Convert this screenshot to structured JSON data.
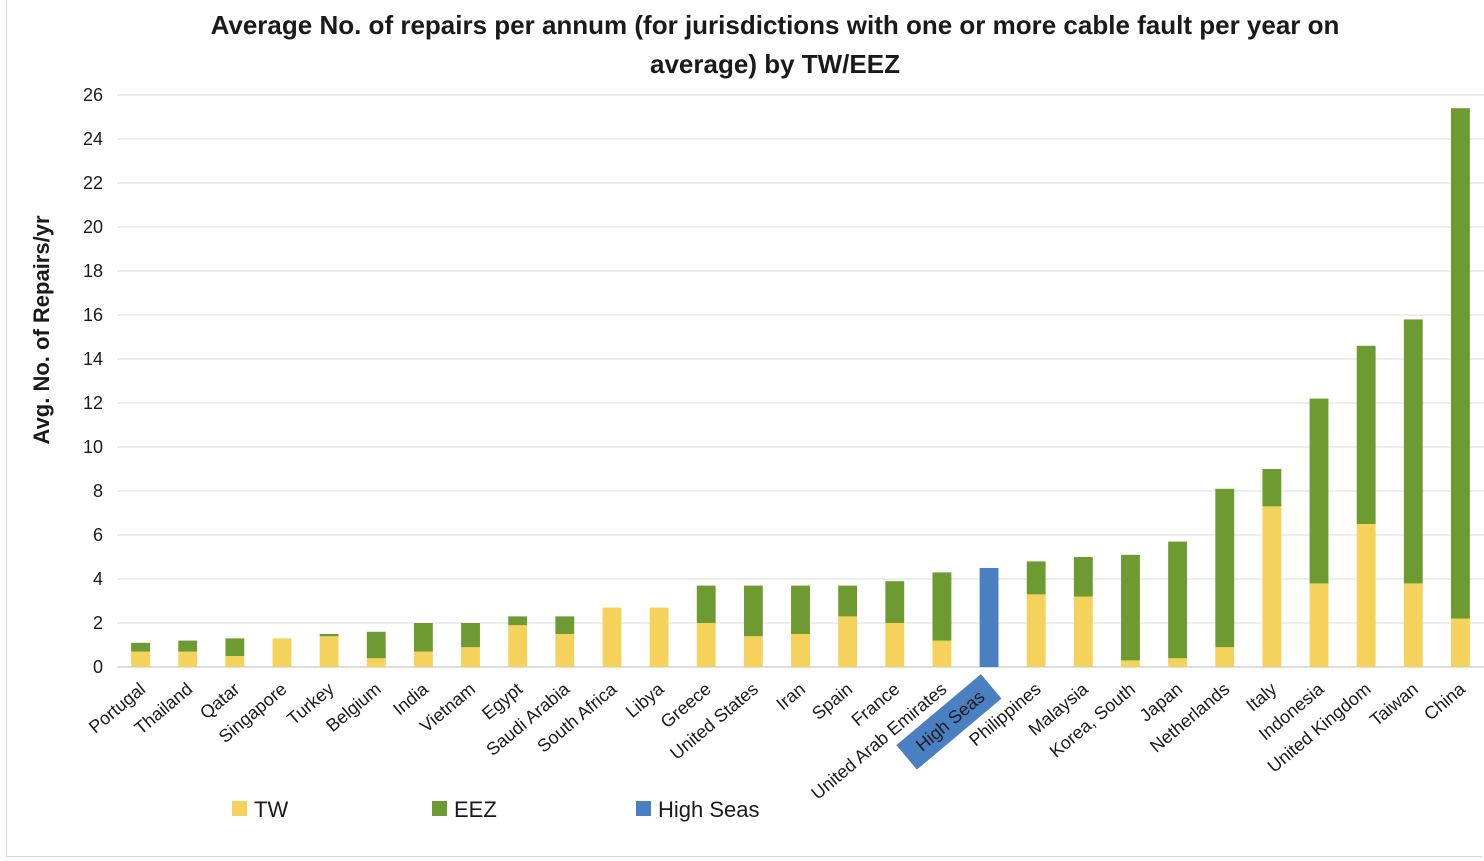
{
  "chart_data": {
    "type": "bar",
    "stacked": true,
    "title": "Average No. of repairs per annum (for  jurisdictions with one or more cable fault per year on average) by TW/EEZ",
    "title_lines": [
      "Average No. of repairs per annum (for  jurisdictions with one or more cable fault per year on",
      "average) by TW/EEZ"
    ],
    "xlabel": "",
    "ylabel": "Avg. No. of Repairs/yr",
    "ylim": [
      0,
      26
    ],
    "yticks": [
      0,
      2,
      4,
      6,
      8,
      10,
      12,
      14,
      16,
      18,
      20,
      22,
      24,
      26
    ],
    "grid": true,
    "legend_position": "bottom-left",
    "categories": [
      "Portugal",
      "Thailand",
      "Qatar",
      "Singapore",
      "Turkey",
      "Belgium",
      "India",
      "Vietnam",
      "Egypt",
      "Saudi Arabia",
      "South Africa",
      "Libya",
      "Greece",
      "United States",
      "Iran",
      "Spain",
      "France",
      "United Arab Emirates",
      "High Seas",
      "Philippines",
      "Malaysia",
      "Korea, South",
      "Japan",
      "Netherlands",
      "Italy",
      "Indonesia",
      "United Kingdom",
      "Taiwan",
      "China"
    ],
    "highlighted_category": "High Seas",
    "series": [
      {
        "name": "TW",
        "color": "#f5d25b",
        "values": [
          0.7,
          0.7,
          0.5,
          1.3,
          1.4,
          0.4,
          0.7,
          0.9,
          1.9,
          1.5,
          2.7,
          2.7,
          2.0,
          1.4,
          1.5,
          2.3,
          2.0,
          1.2,
          0,
          3.3,
          3.2,
          0.3,
          0.4,
          0.9,
          7.3,
          3.8,
          6.5,
          3.8,
          2.2
        ]
      },
      {
        "name": "EEZ",
        "color": "#6e9a32",
        "values": [
          0.4,
          0.5,
          0.8,
          0,
          0.1,
          1.2,
          1.3,
          1.1,
          0.4,
          0.8,
          0,
          0,
          1.7,
          2.3,
          2.2,
          1.4,
          1.9,
          3.1,
          0,
          1.5,
          1.8,
          4.8,
          5.3,
          7.2,
          1.7,
          8.4,
          8.1,
          12.0,
          23.2
        ]
      },
      {
        "name": "High Seas",
        "color": "#4a7fc1",
        "values": [
          0,
          0,
          0,
          0,
          0,
          0,
          0,
          0,
          0,
          0,
          0,
          0,
          0,
          0,
          0,
          0,
          0,
          0,
          4.5,
          0,
          0,
          0,
          0,
          0,
          0,
          0,
          0,
          0,
          0
        ]
      }
    ]
  }
}
